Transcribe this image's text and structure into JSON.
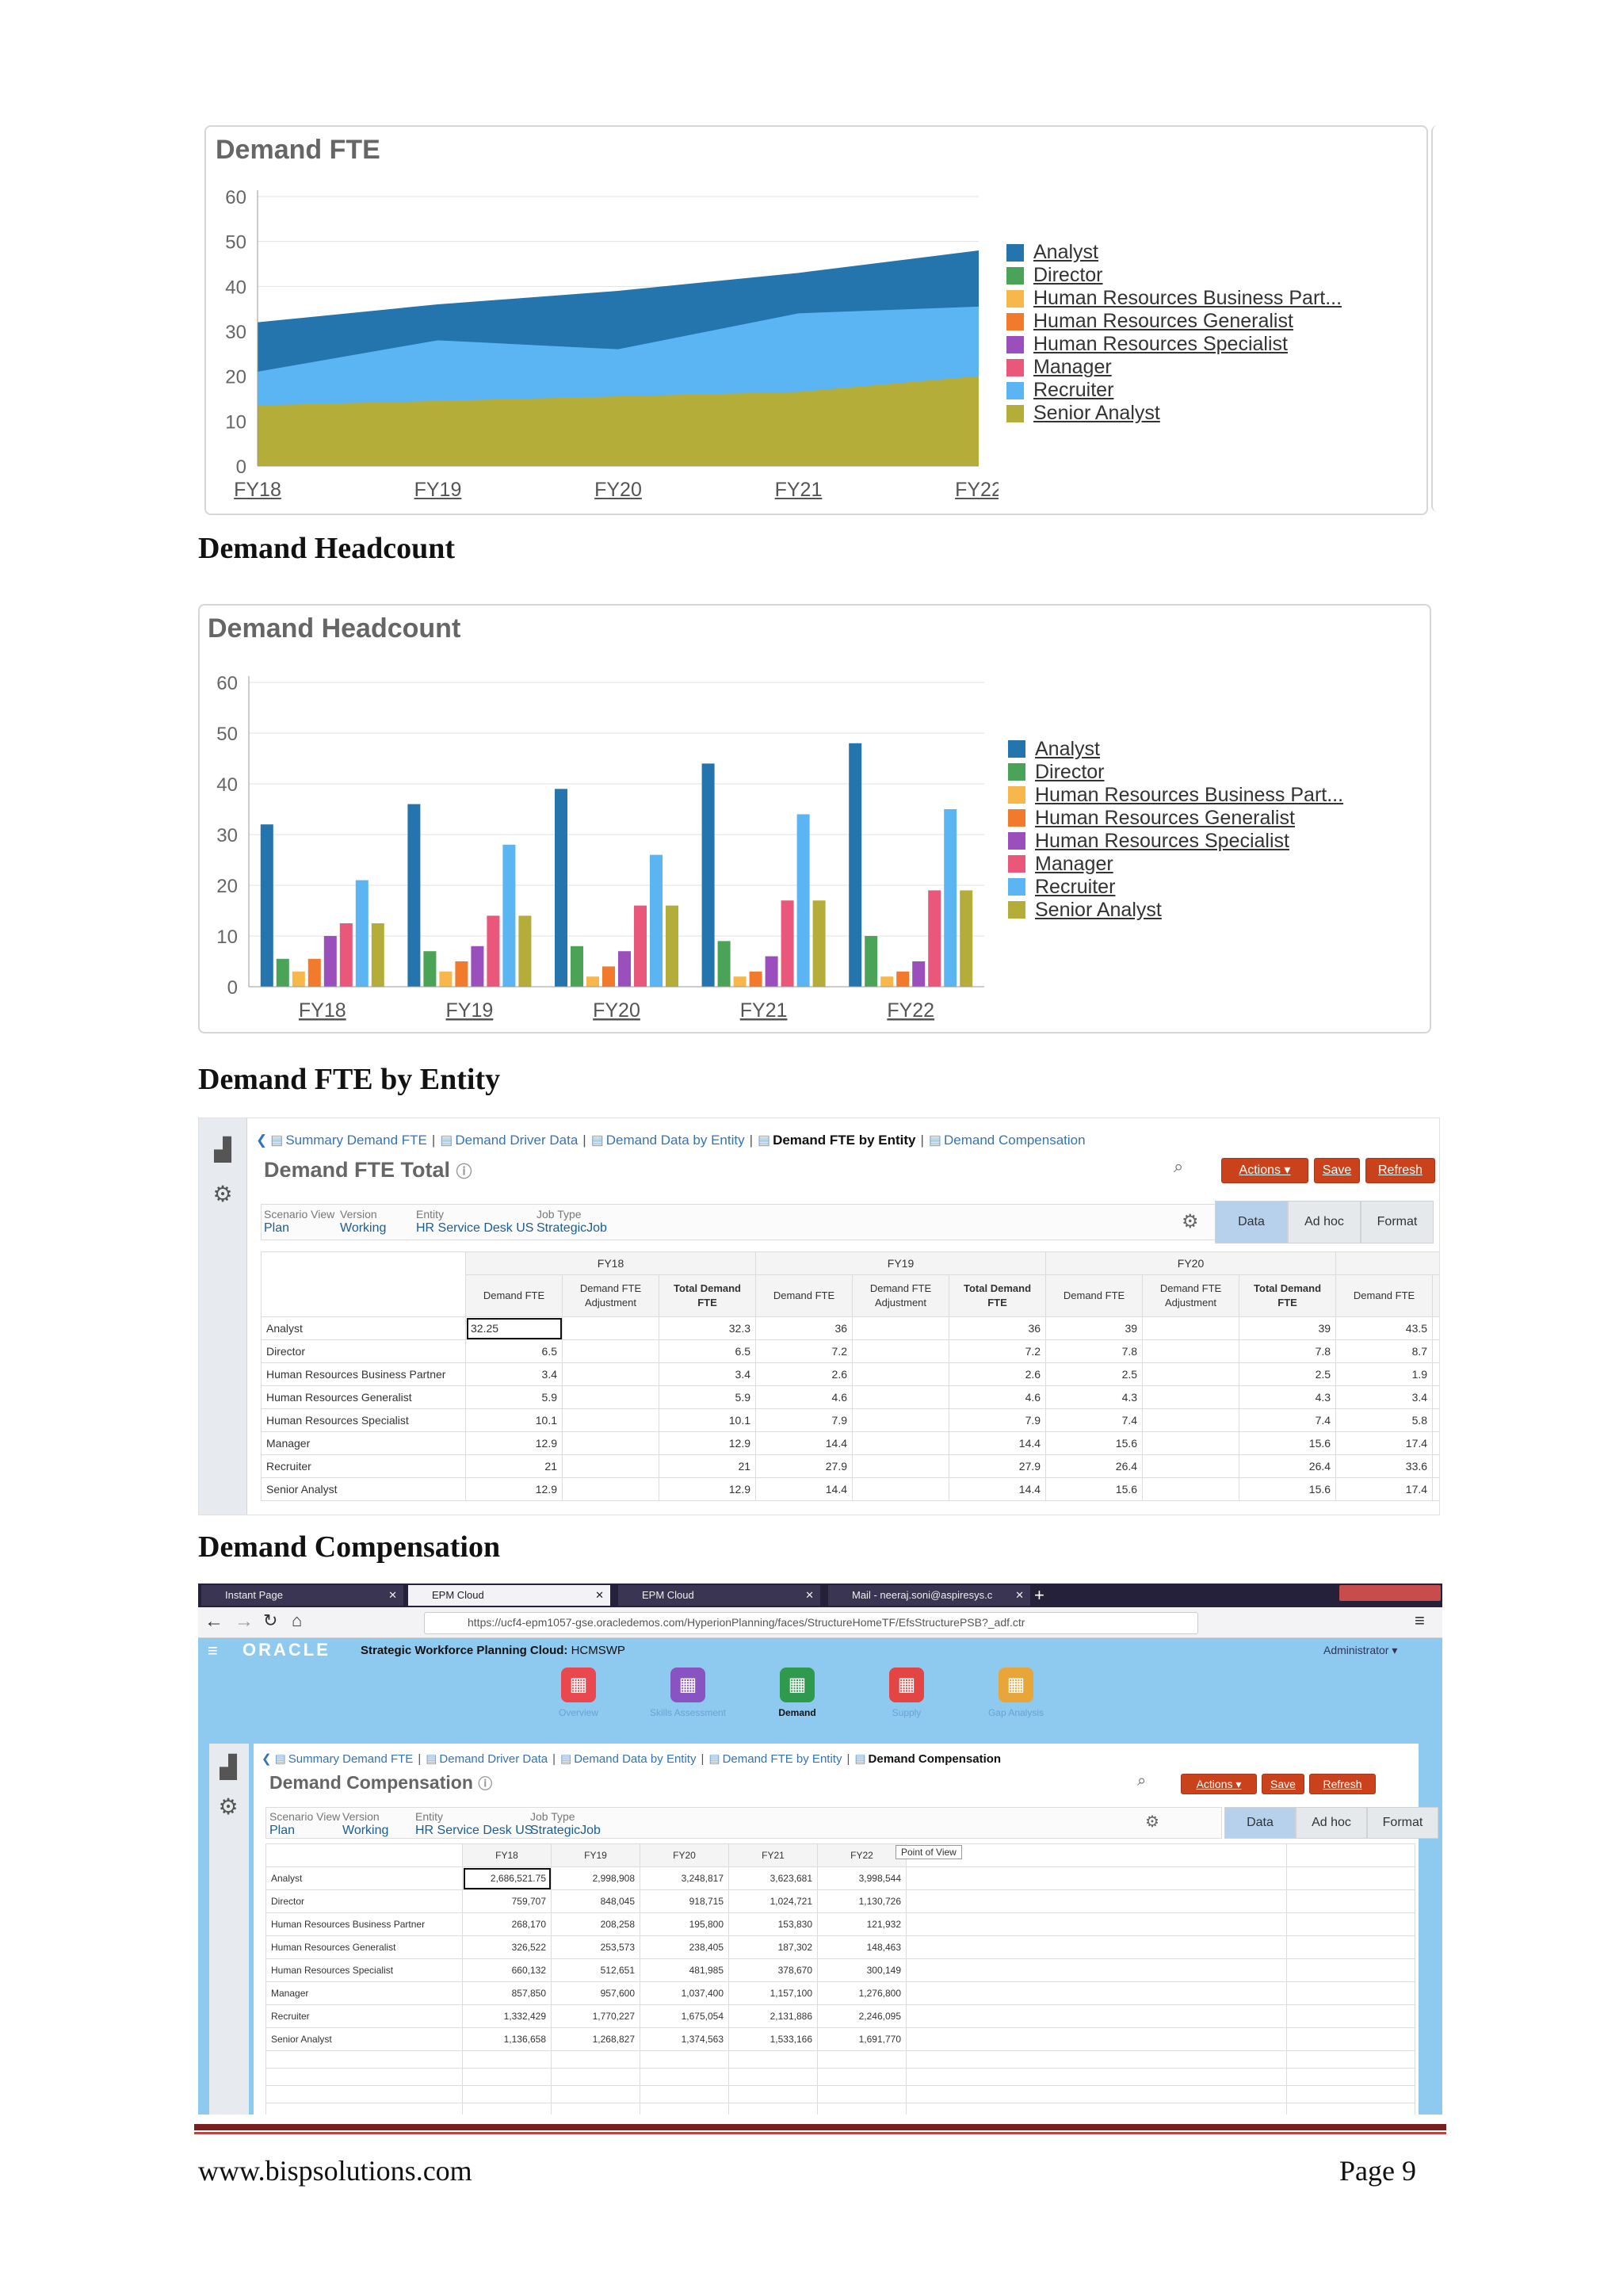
{
  "chart_data": [
    {
      "type": "area",
      "title": "Demand FTE",
      "categories": [
        "FY18",
        "FY19",
        "FY20",
        "FY21",
        "FY22"
      ],
      "ylim": [
        0,
        60
      ],
      "yticks": [
        "0",
        "10",
        "20",
        "30",
        "40",
        "50",
        "60"
      ],
      "legend_position": "right",
      "series": [
        {
          "name": "Senior Analyst",
          "color": "#b5ad3a",
          "values": [
            13.5,
            14.5,
            15.5,
            16.5,
            20
          ]
        },
        {
          "name": "Recruiter",
          "color": "#5bb5f2",
          "values": [
            21,
            28,
            26,
            34,
            35.5
          ]
        },
        {
          "name": "Analyst",
          "color": "#2474ad",
          "values": [
            32,
            36,
            39,
            43,
            48
          ]
        }
      ],
      "legend": [
        {
          "name": "Analyst",
          "color": "#2474ad"
        },
        {
          "name": "Director",
          "color": "#4aa356"
        },
        {
          "name": "Human Resources Business Part...",
          "color": "#f7b74a"
        },
        {
          "name": "Human Resources Generalist",
          "color": "#f27a2c"
        },
        {
          "name": "Human Resources Specialist",
          "color": "#9b4fbd"
        },
        {
          "name": "Manager",
          "color": "#e9587a"
        },
        {
          "name": "Recruiter",
          "color": "#5bb5f2"
        },
        {
          "name": "Senior Analyst",
          "color": "#b5ad3a"
        }
      ]
    },
    {
      "type": "bar",
      "title": "Demand Headcount",
      "categories": [
        "FY18",
        "FY19",
        "FY20",
        "FY21",
        "FY22"
      ],
      "ylim": [
        0,
        60
      ],
      "yticks": [
        "0",
        "10",
        "20",
        "30",
        "40",
        "50",
        "60"
      ],
      "legend_position": "right",
      "series": [
        {
          "name": "Analyst",
          "color": "#2474ad",
          "values": [
            32,
            36,
            39,
            44,
            48
          ]
        },
        {
          "name": "Director",
          "color": "#4aa356",
          "values": [
            5.5,
            7,
            8,
            9,
            10
          ]
        },
        {
          "name": "Human Resources Business Part...",
          "color": "#f7b74a",
          "values": [
            3,
            3,
            2,
            2,
            2
          ]
        },
        {
          "name": "Human Resources Generalist",
          "color": "#f27a2c",
          "values": [
            5.5,
            5,
            4,
            3,
            3
          ]
        },
        {
          "name": "Human Resources Specialist",
          "color": "#9b4fbd",
          "values": [
            10,
            8,
            7,
            6,
            5
          ]
        },
        {
          "name": "Manager",
          "color": "#e9587a",
          "values": [
            12.5,
            14,
            16,
            17,
            19
          ]
        },
        {
          "name": "Recruiter",
          "color": "#5bb5f2",
          "values": [
            21,
            28,
            26,
            34,
            35
          ]
        },
        {
          "name": "Senior Analyst",
          "color": "#b5ad3a",
          "values": [
            12.5,
            14,
            16,
            17,
            19
          ]
        }
      ]
    }
  ],
  "headings": {
    "demand_headcount": "Demand Headcount",
    "fte_by_entity": "Demand FTE by Entity",
    "compensation": "Demand Compensation"
  },
  "fte_screen": {
    "breadcrumbs": [
      "Summary Demand FTE",
      "Demand Driver Data",
      "Demand Data by Entity",
      "Demand FTE by Entity",
      "Demand Compensation"
    ],
    "current": "Demand FTE by Entity",
    "title": "Demand FTE Total",
    "buttons": {
      "actions": "Actions ▾",
      "save": "Save",
      "refresh": "Refresh"
    },
    "pov": [
      {
        "label": "Scenario View",
        "value": "Plan"
      },
      {
        "label": "Version",
        "value": "Working"
      },
      {
        "label": "Entity",
        "value": "HR Service Desk US"
      },
      {
        "label": "Job Type",
        "value": "StrategicJob"
      }
    ],
    "tabs": [
      "Data",
      "Ad hoc",
      "Format"
    ],
    "years": [
      "FY18",
      "FY19",
      "FY20"
    ],
    "col_headers": [
      "Demand FTE",
      "Demand FTE Adjustment",
      "Total Demand FTE",
      "Demand FTE",
      "Demand FTE Adjustment",
      "Total Demand FTE",
      "Demand FTE",
      "Demand FTE Adjustment",
      "Total Demand FTE",
      "Demand FTE",
      "Der Ad"
    ],
    "rows": [
      {
        "name": "Analyst",
        "vals": [
          "32.25",
          "",
          "32.3",
          "36",
          "",
          "36",
          "39",
          "",
          "39",
          "43.5"
        ]
      },
      {
        "name": "Director",
        "vals": [
          "6.5",
          "",
          "6.5",
          "7.2",
          "",
          "7.2",
          "7.8",
          "",
          "7.8",
          "8.7"
        ]
      },
      {
        "name": "Human Resources Business Partner",
        "vals": [
          "3.4",
          "",
          "3.4",
          "2.6",
          "",
          "2.6",
          "2.5",
          "",
          "2.5",
          "1.9"
        ]
      },
      {
        "name": "Human Resources Generalist",
        "vals": [
          "5.9",
          "",
          "5.9",
          "4.6",
          "",
          "4.6",
          "4.3",
          "",
          "4.3",
          "3.4"
        ]
      },
      {
        "name": "Human Resources Specialist",
        "vals": [
          "10.1",
          "",
          "10.1",
          "7.9",
          "",
          "7.9",
          "7.4",
          "",
          "7.4",
          "5.8"
        ]
      },
      {
        "name": "Manager",
        "vals": [
          "12.9",
          "",
          "12.9",
          "14.4",
          "",
          "14.4",
          "15.6",
          "",
          "15.6",
          "17.4"
        ]
      },
      {
        "name": "Recruiter",
        "vals": [
          "21",
          "",
          "21",
          "27.9",
          "",
          "27.9",
          "26.4",
          "",
          "26.4",
          "33.6"
        ]
      },
      {
        "name": "Senior Analyst",
        "vals": [
          "12.9",
          "",
          "12.9",
          "14.4",
          "",
          "14.4",
          "15.6",
          "",
          "15.6",
          "17.4"
        ]
      }
    ]
  },
  "comp_screen": {
    "browser_tabs": [
      "Instant Page",
      "EPM Cloud",
      "EPM Cloud",
      "Mail - neeraj.soni@aspiresys.c"
    ],
    "url": "https://ucf4-epm1057-gse.oracledemos.com/HyperionPlanning/faces/StructureHomeTF/EfsStructurePSB?_adf.ctr",
    "brand": "ORACLE",
    "app_title_label": "Strategic Workforce Planning Cloud:",
    "app_title_value": "HCMSWP",
    "user": "Administrator ▾",
    "nav": [
      {
        "label": "Overview",
        "color": "#e8484e"
      },
      {
        "label": "Skills Assessment",
        "color": "#8a53c2"
      },
      {
        "label": "Demand",
        "color": "#2f9a4d"
      },
      {
        "label": "Supply",
        "color": "#e34444"
      },
      {
        "label": "Gap Analysis",
        "color": "#e8a53a"
      }
    ],
    "breadcrumbs": [
      "Summary Demand FTE",
      "Demand Driver Data",
      "Demand Data by Entity",
      "Demand FTE by Entity",
      "Demand Compensation"
    ],
    "current": "Demand Compensation",
    "title": "Demand Compensation",
    "buttons": {
      "actions": "Actions ▾",
      "save": "Save",
      "refresh": "Refresh"
    },
    "pov": [
      {
        "label": "Scenario View",
        "value": "Plan"
      },
      {
        "label": "Version",
        "value": "Working"
      },
      {
        "label": "Entity",
        "value": "HR Service Desk US"
      },
      {
        "label": "Job Type",
        "value": "StrategicJob"
      }
    ],
    "tabs": [
      "Data",
      "Ad hoc",
      "Format"
    ],
    "tooltip": "Point of View",
    "years": [
      "FY18",
      "FY19",
      "FY20",
      "FY21",
      "FY22"
    ],
    "rows": [
      {
        "name": "Analyst",
        "vals": [
          "2,686,521.75",
          "2,998,908",
          "3,248,817",
          "3,623,681",
          "3,998,544"
        ]
      },
      {
        "name": "Director",
        "vals": [
          "759,707",
          "848,045",
          "918,715",
          "1,024,721",
          "1,130,726"
        ]
      },
      {
        "name": "Human Resources Business Partner",
        "vals": [
          "268,170",
          "208,258",
          "195,800",
          "153,830",
          "121,932"
        ]
      },
      {
        "name": "Human Resources Generalist",
        "vals": [
          "326,522",
          "253,573",
          "238,405",
          "187,302",
          "148,463"
        ]
      },
      {
        "name": "Human Resources Specialist",
        "vals": [
          "660,132",
          "512,651",
          "481,985",
          "378,670",
          "300,149"
        ]
      },
      {
        "name": "Manager",
        "vals": [
          "857,850",
          "957,600",
          "1,037,400",
          "1,157,100",
          "1,276,800"
        ]
      },
      {
        "name": "Recruiter",
        "vals": [
          "1,332,429",
          "1,770,227",
          "1,675,054",
          "2,131,886",
          "2,246,095"
        ]
      },
      {
        "name": "Senior Analyst",
        "vals": [
          "1,136,658",
          "1,268,827",
          "1,374,563",
          "1,533,166",
          "1,691,770"
        ]
      }
    ]
  },
  "footer": {
    "website": "www.bispsolutions.com",
    "page": "Page 9"
  }
}
